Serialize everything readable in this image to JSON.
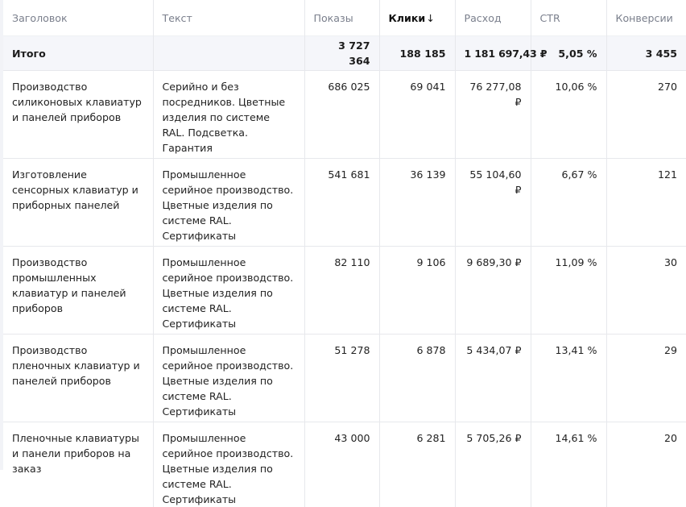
{
  "columns": {
    "title": "Заголовок",
    "text": "Текст",
    "impressions": "Показы",
    "clicks": "Клики",
    "clicks_sort_arrow": "↓",
    "cost": "Расход",
    "ctr": "CTR",
    "conversions": "Конверсии"
  },
  "total": {
    "label": "Итого",
    "impressions": "3 727 364",
    "clicks": "188 185",
    "cost": "1 181 697,43 ₽",
    "ctr": "5,05 %",
    "conversions": "3 455"
  },
  "rows": [
    {
      "title": "Производство силиконовых клавиатур и панелей приборов",
      "text": "Серийно и без посредников. Цветные изделия по системе RAL. Подсветка. Гарантия",
      "impressions": "686 025",
      "clicks": "69 041",
      "cost": "76 277,08 ₽",
      "ctr": "10,06 %",
      "conversions": "270"
    },
    {
      "title": "Изготовление сенсорных клавиатур и приборных панелей",
      "text": "Промышленное серийное производство. Цветные изделия по системе RAL. Сертификаты",
      "impressions": "541 681",
      "clicks": "36 139",
      "cost": "55 104,60 ₽",
      "ctr": "6,67 %",
      "conversions": "121"
    },
    {
      "title": "Производство промышленных клавиатур и панелей приборов",
      "text": "Промышленное серийное производство. Цветные изделия по системе RAL. Сертификаты",
      "impressions": "82 110",
      "clicks": "9 106",
      "cost": "9 689,30 ₽",
      "ctr": "11,09 %",
      "conversions": "30"
    },
    {
      "title": "Производство пленочных клавиатур и панелей приборов",
      "text": "Промышленное серийное производство. Цветные изделия по системе RAL. Сертификаты",
      "impressions": "51 278",
      "clicks": "6 878",
      "cost": "5 434,07 ₽",
      "ctr": "13,41 %",
      "conversions": "29"
    },
    {
      "title": "Пленочные клавиатуры и панели приборов на заказ",
      "text": "Промышленное серийное производство. Цветные изделия по системе RAL. Сертификаты",
      "impressions": "43 000",
      "clicks": "6 281",
      "cost": "5 705,26 ₽",
      "ctr": "14,61 %",
      "conversions": "20"
    }
  ]
}
